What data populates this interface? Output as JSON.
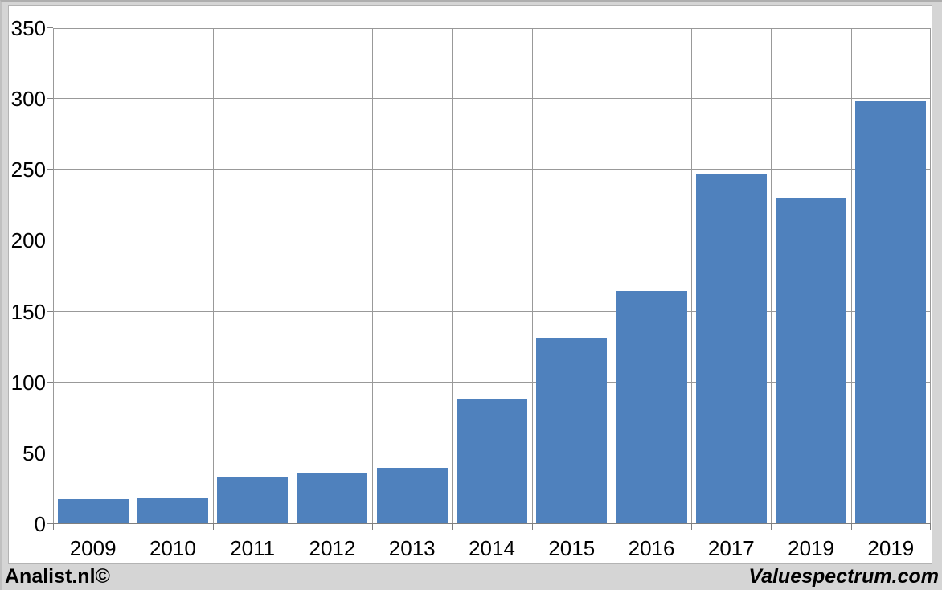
{
  "footer": {
    "left": "Analist.nl©",
    "right": "Valuespectrum.com"
  },
  "chart_data": {
    "type": "bar",
    "categories": [
      "2009",
      "2010",
      "2011",
      "2012",
      "2013",
      "2014",
      "2015",
      "2016",
      "2017",
      "2019",
      "2019"
    ],
    "values": [
      17,
      18,
      33,
      35,
      39,
      88,
      131,
      164,
      247,
      230,
      298
    ],
    "title": "",
    "xlabel": "",
    "ylabel": "",
    "ylim": [
      0,
      350
    ],
    "yticks": [
      0,
      50,
      100,
      150,
      200,
      250,
      300,
      350
    ],
    "grid": true,
    "legend": false,
    "bar_color": "#4f81bd",
    "gridline_color": "#999999",
    "axis_color": "#7f7f7f",
    "plot_background": "#ffffff",
    "frame_background": "#d5d5d5"
  }
}
